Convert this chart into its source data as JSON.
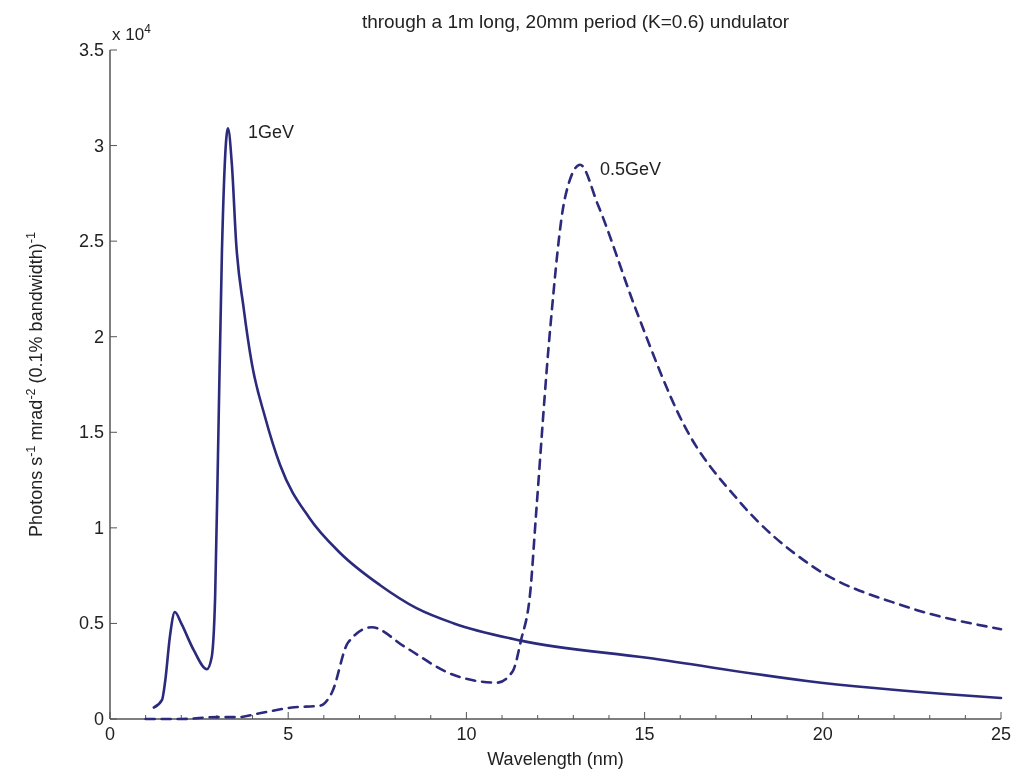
{
  "chart_data": {
    "type": "line",
    "title": "through a 1m long, 20mm period (K=0.6) undulator",
    "xlabel": "Wavelength (nm)",
    "ylabel": "Photons s$^{-1}$  mrad$^{-2}$  (0.1% bandwidth)$^{-1}$",
    "annotations": [
      "x 10$^{4}$"
    ],
    "xlim": [
      0,
      25
    ],
    "ylim": [
      0,
      3.5
    ],
    "xticks": [
      0,
      {
        "value": 1,
        "label": null
      },
      {
        "value": 2,
        "label": null
      },
      {
        "value": 3,
        "label": null
      },
      {
        "value": 4,
        "label": null
      },
      5,
      {
        "value": 6,
        "label": null
      },
      {
        "value": 7,
        "label": null
      },
      {
        "value": 8,
        "label": null
      },
      {
        "value": 9,
        "label": null
      },
      10,
      {
        "value": 11,
        "label": null
      },
      {
        "value": 12,
        "label": null
      },
      {
        "value": 13,
        "label": null
      },
      {
        "value": 14,
        "label": null
      },
      15,
      {
        "value": 16,
        "label": null
      },
      {
        "value": 17,
        "label": null
      },
      {
        "value": 18,
        "label": null
      },
      {
        "value": 19,
        "label": null
      },
      20,
      {
        "value": 21,
        "label": null
      },
      {
        "value": 22,
        "label": null
      },
      {
        "value": 23,
        "label": null
      },
      {
        "value": 24,
        "label": null
      },
      25
    ],
    "yticks": [
      0,
      0.5,
      1,
      1.5,
      2,
      2.5,
      3,
      3.5
    ],
    "grid": false,
    "series": [
      {
        "name": "1GeV",
        "color": "#2b2a7c",
        "line_style": "solid",
        "x": [
          1.23,
          1.46,
          1.55,
          1.68,
          1.82,
          2.0,
          2.35,
          2.72,
          2.85,
          2.95,
          3.03,
          3.14,
          3.31,
          3.42,
          3.54,
          3.75,
          3.98,
          4.35,
          4.77,
          5.6,
          6.45,
          7.58,
          8.6,
          9.65,
          11.53,
          15.07,
          19.95,
          25
        ],
        "values": [
          0.06,
          0.1,
          0.2,
          0.43,
          0.56,
          0.5,
          0.36,
          0.26,
          0.32,
          0.64,
          1.38,
          2.44,
          3.09,
          2.9,
          2.49,
          2.15,
          1.86,
          1.58,
          1.33,
          1.05,
          0.87,
          0.7,
          0.58,
          0.5,
          0.41,
          0.32,
          0.19,
          0.11
        ]
      },
      {
        "name": "0.5GeV",
        "color": "#2b2a7c",
        "line_style": "dashed",
        "x": [
          1.0,
          2.0,
          3.0,
          3.6,
          4.2,
          5.1,
          5.9,
          6.23,
          6.68,
          7.35,
          8.25,
          9.65,
          10.86,
          11.3,
          11.53,
          11.8,
          11.95,
          12.35,
          12.77,
          13.19,
          13.69,
          14.76,
          16.1,
          17.65,
          19.7,
          22.3,
          25
        ],
        "values": [
          0,
          0,
          0.01,
          0.01,
          0.03,
          0.06,
          0.07,
          0.14,
          0.4,
          0.48,
          0.38,
          0.23,
          0.19,
          0.25,
          0.41,
          0.68,
          1.06,
          2.04,
          2.73,
          2.9,
          2.69,
          2.14,
          1.54,
          1.14,
          0.8,
          0.59,
          0.47
        ]
      }
    ]
  }
}
